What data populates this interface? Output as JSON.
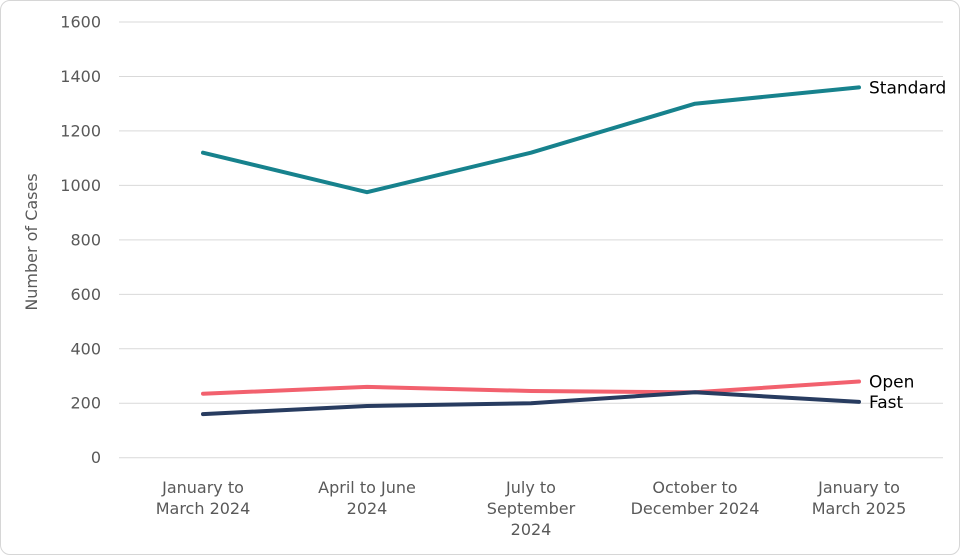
{
  "chart_data": {
    "type": "line",
    "title": "",
    "xlabel": "",
    "ylabel": "Number of Cases",
    "ylim": [
      0,
      1600
    ],
    "ytick_step": 200,
    "yticks": [
      0,
      200,
      400,
      600,
      800,
      1000,
      1200,
      1400,
      1600
    ],
    "grid": "horizontal",
    "legend_position": "labels-at-line-ends-right",
    "categories": [
      "January to March 2024",
      "April to June 2024",
      "July to September 2024",
      "October to December 2024",
      "January to March 2025"
    ],
    "category_display_lines": [
      [
        "January to",
        "March 2024"
      ],
      [
        "April to June",
        "2024"
      ],
      [
        "July to",
        "September",
        "2024"
      ],
      [
        "October to",
        "December 2024"
      ],
      [
        "January to",
        "March 2025"
      ]
    ],
    "series": [
      {
        "name": "Standard",
        "color": "#17828D",
        "values": [
          1120,
          975,
          1120,
          1300,
          1360
        ]
      },
      {
        "name": "Open",
        "color": "#F2616E",
        "values": [
          235,
          260,
          245,
          240,
          280
        ]
      },
      {
        "name": "Fast",
        "color": "#283C60",
        "values": [
          160,
          190,
          200,
          240,
          205
        ]
      }
    ]
  },
  "colors": {
    "gridline": "#D9D9D9",
    "axis_text": "#595959",
    "series_label_text": "#000000",
    "background": "#FFFFFF",
    "frame_border": "#D6D6D6"
  }
}
